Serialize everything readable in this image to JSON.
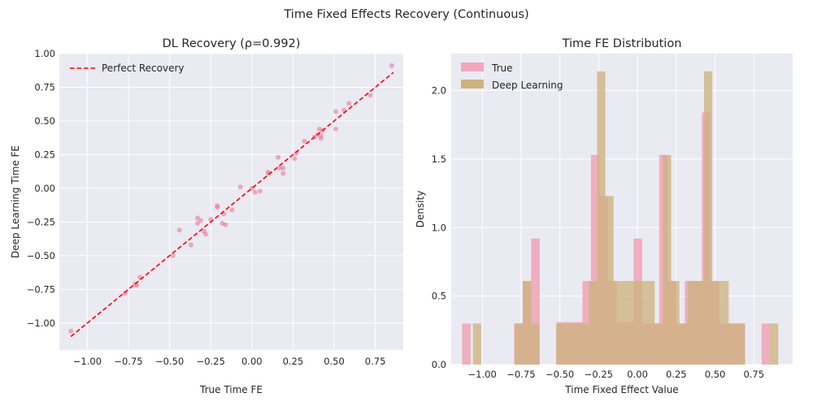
{
  "figure": {
    "suptitle": "Time Fixed Effects Recovery (Continuous)"
  },
  "chart_data": [
    {
      "type": "scatter",
      "title": "DL Recovery (ρ=0.992)",
      "xlabel": "True Time FE",
      "ylabel": "Deep Learning Time FE",
      "xlim": [
        -1.17,
        0.92
      ],
      "ylim": [
        -1.2,
        1.0
      ],
      "xticks": [
        -1.0,
        -0.75,
        -0.5,
        -0.25,
        0.0,
        0.25,
        0.5,
        0.75
      ],
      "xtick_labels": [
        "−1.00",
        "−0.75",
        "−0.50",
        "−0.25",
        "0.00",
        "0.25",
        "0.50",
        "0.75"
      ],
      "yticks": [
        -1.0,
        -0.75,
        -0.5,
        -0.25,
        0.0,
        0.25,
        0.5,
        0.75,
        1.0
      ],
      "ytick_labels": [
        "−1.00",
        "−0.75",
        "−0.50",
        "−0.25",
        "0.00",
        "0.25",
        "0.50",
        "0.75",
        "1.00"
      ],
      "grid": true,
      "legend_position": "top-left",
      "legend": [
        "Perfect Recovery"
      ],
      "point_color": "#e8799a",
      "line_color": "#ff0000",
      "reference_line": {
        "name": "Perfect Recovery",
        "from": [
          -1.1,
          -1.1
        ],
        "to": [
          0.86,
          0.86
        ]
      },
      "points": [
        [
          -1.1,
          -1.06
        ],
        [
          -0.77,
          -0.78
        ],
        [
          -0.71,
          -0.71
        ],
        [
          -0.7,
          -0.72
        ],
        [
          -0.68,
          -0.66
        ],
        [
          -0.48,
          -0.5
        ],
        [
          -0.44,
          -0.31
        ],
        [
          -0.37,
          -0.42
        ],
        [
          -0.33,
          -0.22
        ],
        [
          -0.33,
          -0.26
        ],
        [
          -0.31,
          -0.24
        ],
        [
          -0.29,
          -0.32
        ],
        [
          -0.28,
          -0.34
        ],
        [
          -0.25,
          -0.23
        ],
        [
          -0.21,
          -0.13
        ],
        [
          -0.21,
          -0.14
        ],
        [
          -0.18,
          -0.26
        ],
        [
          -0.17,
          -0.19
        ],
        [
          -0.16,
          -0.27
        ],
        [
          -0.12,
          -0.16
        ],
        [
          -0.07,
          0.01
        ],
        [
          0.0,
          0.0
        ],
        [
          0.02,
          -0.03
        ],
        [
          0.05,
          -0.02
        ],
        [
          0.1,
          0.11
        ],
        [
          0.1,
          0.12
        ],
        [
          0.16,
          0.23
        ],
        [
          0.17,
          0.15
        ],
        [
          0.19,
          0.11
        ],
        [
          0.19,
          0.15
        ],
        [
          0.26,
          0.22
        ],
        [
          0.27,
          0.26
        ],
        [
          0.32,
          0.35
        ],
        [
          0.38,
          0.38
        ],
        [
          0.4,
          0.4
        ],
        [
          0.41,
          0.44
        ],
        [
          0.42,
          0.37
        ],
        [
          0.42,
          0.39
        ],
        [
          0.43,
          0.43
        ],
        [
          0.51,
          0.57
        ],
        [
          0.51,
          0.44
        ],
        [
          0.56,
          0.58
        ],
        [
          0.59,
          0.63
        ],
        [
          0.72,
          0.69
        ],
        [
          0.85,
          0.91
        ]
      ]
    },
    {
      "type": "histogram",
      "title": "Time FE Distribution",
      "xlabel": "Time Fixed Effect Value",
      "ylabel": "Density",
      "xlim": [
        -1.2,
        1.0
      ],
      "ylim": [
        0,
        2.27
      ],
      "xticks": [
        -1.0,
        -0.75,
        -0.5,
        -0.25,
        0.0,
        0.25,
        0.5,
        0.75
      ],
      "xtick_labels": [
        "−1.00",
        "−0.75",
        "−0.50",
        "−0.25",
        "0.00",
        "0.25",
        "0.50",
        "0.75"
      ],
      "yticks": [
        0.0,
        0.5,
        1.0,
        1.5,
        2.0
      ],
      "ytick_labels": [
        "0.0",
        "0.5",
        "1.0",
        "1.5",
        "2.0"
      ],
      "grid": true,
      "legend_position": "top-left",
      "series": [
        {
          "name": "True",
          "color": "#f0a8b8",
          "bins": [
            [
              -1.13,
              -1.075,
              0.3
            ],
            [
              -0.795,
              -0.74,
              0.3
            ],
            [
              -0.74,
              -0.685,
              0.61
            ],
            [
              -0.685,
              -0.63,
              0.92
            ],
            [
              -0.52,
              -0.465,
              0.31
            ],
            [
              -0.465,
              -0.41,
              0.31
            ],
            [
              -0.41,
              -0.355,
              0.31
            ],
            [
              -0.355,
              -0.3,
              0.61
            ],
            [
              -0.3,
              -0.245,
              1.53
            ],
            [
              -0.245,
              -0.19,
              1.23
            ],
            [
              -0.19,
              -0.135,
              0.61
            ],
            [
              -0.135,
              -0.08,
              0.31
            ],
            [
              -0.08,
              -0.025,
              0.31
            ],
            [
              -0.025,
              0.03,
              0.92
            ],
            [
              0.03,
              0.085,
              0.3
            ],
            [
              0.085,
              0.14,
              0.3
            ],
            [
              0.14,
              0.195,
              1.53
            ],
            [
              0.195,
              0.25,
              0.61
            ],
            [
              0.25,
              0.305,
              0.3
            ],
            [
              0.305,
              0.36,
              0.61
            ],
            [
              0.36,
              0.415,
              0.61
            ],
            [
              0.415,
              0.47,
              1.84
            ],
            [
              0.47,
              0.525,
              0.61
            ],
            [
              0.525,
              0.58,
              0.3
            ],
            [
              0.58,
              0.635,
              0.3
            ],
            [
              0.635,
              0.69,
              0.3
            ],
            [
              0.8,
              0.855,
              0.3
            ]
          ]
        },
        {
          "name": "Deep Learning",
          "color": "#cdb27f",
          "bins": [
            [
              -1.06,
              -1.007,
              0.3
            ],
            [
              -0.79,
              -0.737,
              0.3
            ],
            [
              -0.737,
              -0.684,
              0.61
            ],
            [
              -0.684,
              -0.631,
              0.3
            ],
            [
              -0.525,
              -0.472,
              0.3
            ],
            [
              -0.472,
              -0.419,
              0.3
            ],
            [
              -0.419,
              -0.366,
              0.3
            ],
            [
              -0.366,
              -0.313,
              0.3
            ],
            [
              -0.313,
              -0.26,
              0.61
            ],
            [
              -0.26,
              -0.207,
              2.14
            ],
            [
              -0.207,
              -0.154,
              1.23
            ],
            [
              -0.154,
              -0.101,
              0.61
            ],
            [
              -0.101,
              -0.048,
              0.61
            ],
            [
              -0.048,
              0.005,
              0.61
            ],
            [
              0.005,
              0.058,
              0.61
            ],
            [
              0.058,
              0.111,
              0.61
            ],
            [
              0.111,
              0.164,
              0.3
            ],
            [
              0.164,
              0.217,
              1.53
            ],
            [
              0.217,
              0.27,
              0.61
            ],
            [
              0.27,
              0.323,
              0.3
            ],
            [
              0.323,
              0.376,
              0.61
            ],
            [
              0.376,
              0.429,
              0.61
            ],
            [
              0.429,
              0.482,
              2.14
            ],
            [
              0.482,
              0.535,
              0.61
            ],
            [
              0.535,
              0.588,
              0.61
            ],
            [
              0.588,
              0.641,
              0.3
            ],
            [
              0.641,
              0.694,
              0.3
            ],
            [
              0.854,
              0.907,
              0.3
            ]
          ]
        }
      ]
    }
  ]
}
